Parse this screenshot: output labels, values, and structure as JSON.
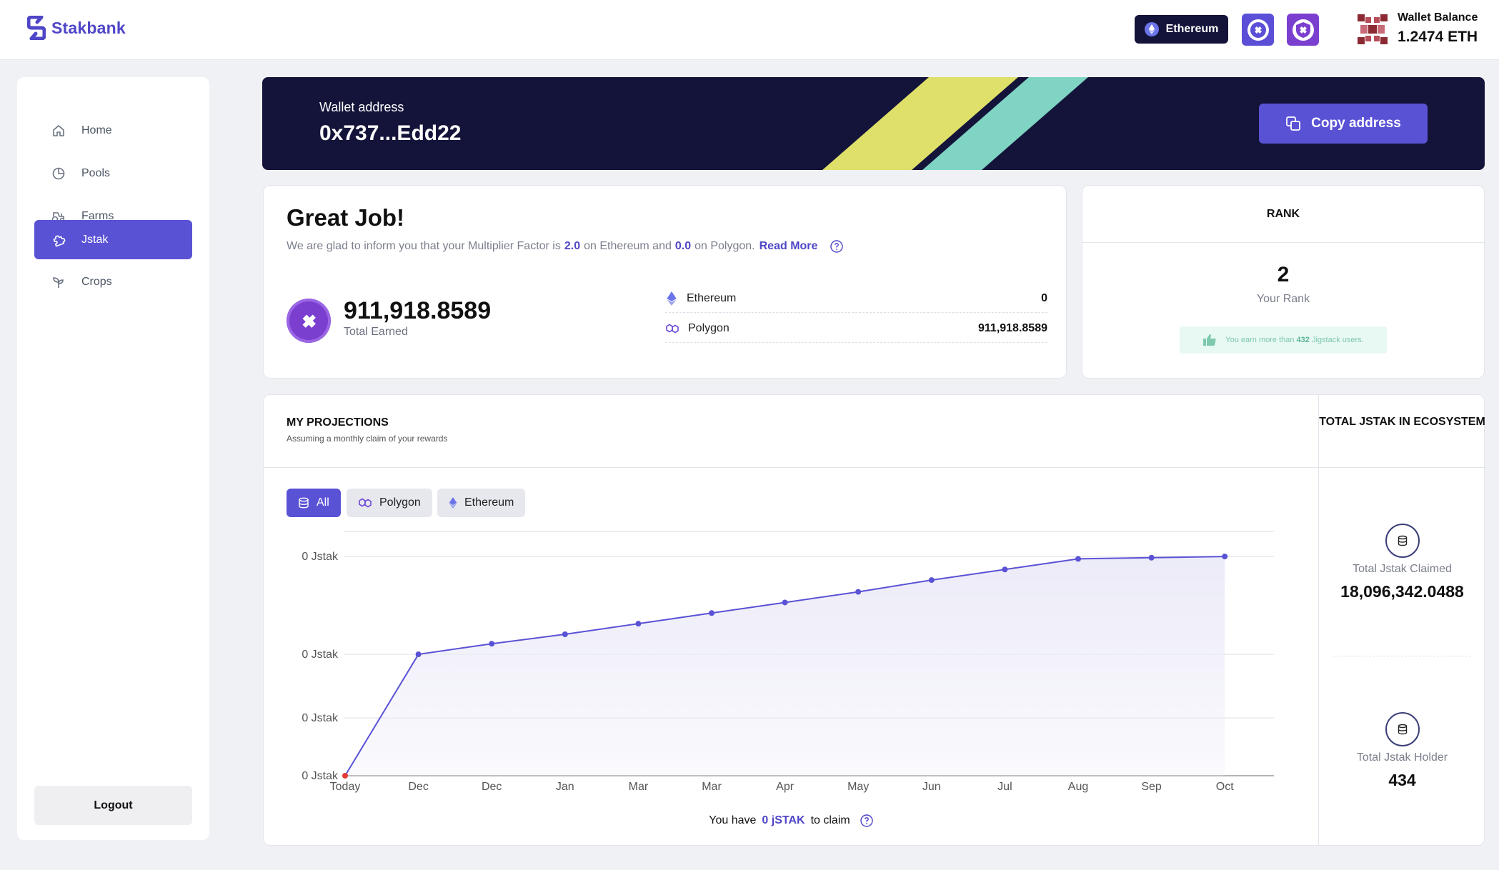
{
  "app": {
    "name": "Stakbank"
  },
  "header": {
    "network_label": "Ethereum",
    "wallet_balance_label": "Wallet Balance",
    "wallet_balance_value": "1.2474 ETH"
  },
  "sidebar": {
    "items": [
      {
        "label": "Home",
        "icon": "home-icon",
        "active": false
      },
      {
        "label": "Pools",
        "icon": "pie-chart-icon",
        "active": false
      },
      {
        "label": "Farms",
        "icon": "tractor-icon",
        "active": false
      },
      {
        "label": "Jstak",
        "icon": "puzzle-icon",
        "active": true
      },
      {
        "label": "Crops",
        "icon": "sprout-icon",
        "active": false
      }
    ],
    "logout_label": "Logout"
  },
  "banner": {
    "label": "Wallet address",
    "address": "0x737...Edd22",
    "copy_label": "Copy address"
  },
  "great_job": {
    "title": "Great Job!",
    "text_prefix": "We are glad to inform you that your Multiplier Factor is",
    "eth_factor": "2.0",
    "text_mid1": "on Ethereum and",
    "poly_factor": "0.0",
    "text_mid2": "on Polygon.",
    "read_more": "Read More",
    "total_earned_value": "911,918.8589",
    "total_earned_label": "Total Earned",
    "networks": [
      {
        "name": "Ethereum",
        "value": "0"
      },
      {
        "name": "Polygon",
        "value": "911,918.8589"
      }
    ]
  },
  "rank": {
    "title": "RANK",
    "value": "2",
    "label": "Your Rank",
    "note_prefix": "You earn more than",
    "note_count": "432",
    "note_suffix": "Jigstack users."
  },
  "projections": {
    "title": "MY PROJECTIONS",
    "subtitle": "Assuming a monthly claim of your rewards",
    "filters": [
      "All",
      "Polygon",
      "Ethereum"
    ],
    "active_filter": "All",
    "claim_prefix": "You have",
    "claim_amount": "0 jSTAK",
    "claim_suffix": "to claim",
    "colors": {
      "line": "#5a52d5",
      "area": "#ecebf8",
      "start_point": "#e53935"
    }
  },
  "chart_data": {
    "type": "area",
    "x": [
      "Today",
      "Dec",
      "Dec",
      "Jan",
      "Mar",
      "Mar",
      "Apr",
      "May",
      "Jun",
      "Jul",
      "Aug",
      "Sep",
      "Oct"
    ],
    "y_tick_labels": [
      "0 Jstak",
      "0 Jstak",
      "0 Jstak",
      "0 Jstak"
    ],
    "series": [
      {
        "values": [
          0,
          0.515,
          0.56,
          0.6,
          0.645,
          0.69,
          0.735,
          0.78,
          0.83,
          0.875,
          0.92,
          0.925,
          0.93
        ]
      }
    ],
    "ylim": [
      0,
      1
    ],
    "grid": true,
    "legend": "none"
  },
  "ecosystem": {
    "title": "TOTAL JSTAK IN ECOSYSTEM",
    "claimed_label": "Total Jstak Claimed",
    "claimed_value": "18,096,342.0488",
    "holder_label": "Total Jstak Holder",
    "holder_value": "434"
  }
}
